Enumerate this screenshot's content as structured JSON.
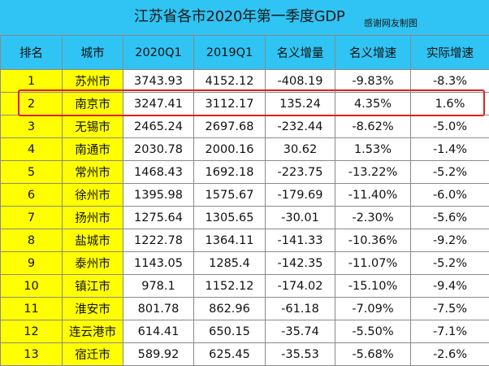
{
  "title": "江苏省各市2020年第一季度GDP",
  "note": "感谢网友制图",
  "columns": [
    "排名",
    "城市",
    "2020Q1",
    "2019Q1",
    "名义增量",
    "名义增速",
    "实际增速"
  ],
  "rows": [
    [
      "1",
      "苏州市",
      "3743.93",
      "4152.12",
      "-408.19",
      "-9.83%",
      "-8.3%"
    ],
    [
      "2",
      "南京市",
      "3247.41",
      "3112.17",
      "135.24",
      "4.35%",
      "1.6%"
    ],
    [
      "3",
      "无锡市",
      "2465.24",
      "2697.68",
      "-232.44",
      "-8.62%",
      "-5.0%"
    ],
    [
      "4",
      "南通市",
      "2030.78",
      "2000.16",
      "30.62",
      "1.53%",
      "-1.4%"
    ],
    [
      "5",
      "常州市",
      "1468.43",
      "1692.18",
      "-223.75",
      "-13.22%",
      "-5.2%"
    ],
    [
      "6",
      "徐州市",
      "1395.98",
      "1575.67",
      "-179.69",
      "-11.40%",
      "-6.0%"
    ],
    [
      "7",
      "扬州市",
      "1275.64",
      "1305.65",
      "-30.01",
      "-2.30%",
      "-5.6%"
    ],
    [
      "8",
      "盐城市",
      "1222.78",
      "1364.11",
      "-141.33",
      "-10.36%",
      "-9.2%"
    ],
    [
      "9",
      "泰州市",
      "1143.05",
      "1285.4",
      "-142.35",
      "-11.07%",
      "-5.2%"
    ],
    [
      "10",
      "镇江市",
      "978.1",
      "1152.12",
      "-174.02",
      "-15.10%",
      "-9.4%"
    ],
    [
      "11",
      "淮安市",
      "801.78",
      "862.96",
      "-61.18",
      "-7.09%",
      "-7.5%"
    ],
    [
      "12",
      "连云港市",
      "614.41",
      "650.15",
      "-35.74",
      "-5.50%",
      "-7.1%"
    ],
    [
      "13",
      "宿迁市",
      "589.92",
      "625.45",
      "-35.53",
      "-5.68%",
      "-2.6%"
    ]
  ],
  "colors": {
    "header_bg": "#2fc4f3",
    "highlight_col_bg": "#ffff00",
    "highlight_border": "#e02020"
  }
}
